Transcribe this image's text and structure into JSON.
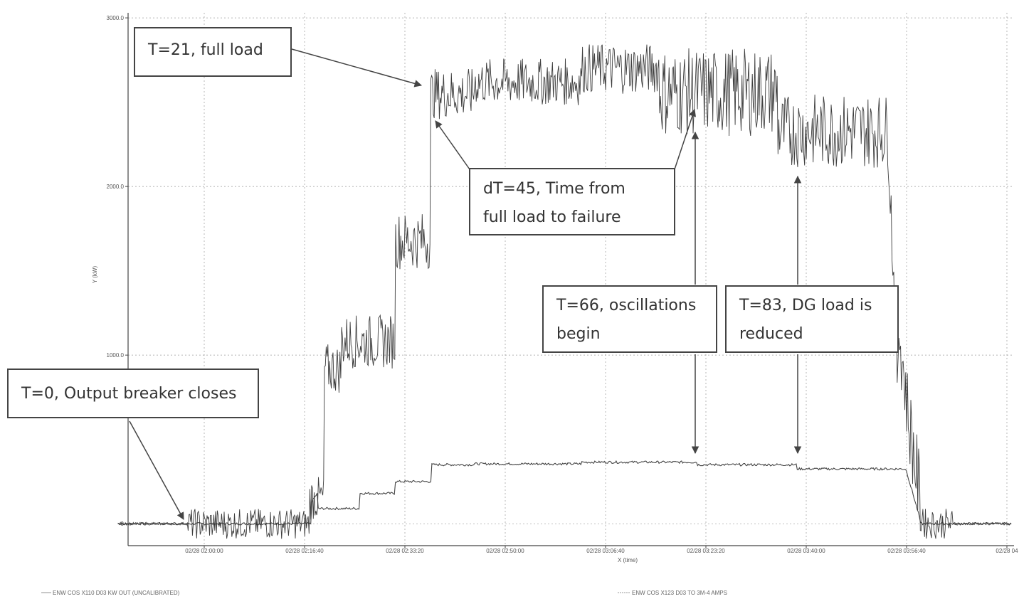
{
  "chart_data": {
    "type": "line",
    "title": "",
    "xlabel": "X (time)",
    "ylabel": "Y (kW)",
    "x_ticks": [
      "02/28 02:00:00",
      "02/28 02:16:40",
      "02/28 02:33:20",
      "02/28 02:50:00",
      "02/28 03:06:40",
      "02/28 03:23:20",
      "02/28 03:40:00",
      "02/28 03:56:40",
      "02/28 04"
    ],
    "y_ticks": [
      "0",
      "1000.0",
      "2000.0",
      "3000.0"
    ],
    "ylim": [
      -130,
      3030
    ],
    "grid": true,
    "series": [
      {
        "name": "ENW COS X110 D03 KW OUT (UNCALIBRATED)",
        "color": "#333333",
        "segments": [
          [
            0,
            0,
            0
          ],
          [
            0,
            17,
            0,
            90
          ],
          [
            17,
            19,
            150,
            130
          ],
          [
            19,
            21.5,
            920,
            150
          ],
          [
            21.5,
            29,
            1080,
            160
          ],
          [
            29,
            34,
            1680,
            170
          ],
          [
            34,
            40,
            2550,
            150
          ],
          [
            40,
            55,
            2620,
            140
          ],
          [
            55,
            66,
            2700,
            150
          ],
          [
            66,
            82.5,
            2560,
            260
          ],
          [
            82.5,
            98,
            2330,
            220
          ]
        ]
      },
      {
        "name": "ENW COS X123 D03 TO 3M-4 AMPS",
        "color": "#444444"
      }
    ],
    "annotations": [
      {
        "id": "a0",
        "text_lines": [
          "T=0, Output breaker closes"
        ]
      },
      {
        "id": "a1",
        "text_lines": [
          "T=21, full load"
        ]
      },
      {
        "id": "a2",
        "text_lines": [
          "dT=45, Time from",
          "full load to failure"
        ]
      },
      {
        "id": "a3",
        "text_lines": [
          "T=66, oscillations",
          "begin"
        ]
      },
      {
        "id": "a4",
        "text_lines": [
          "T=83, DG load is",
          "reduced"
        ]
      }
    ]
  }
}
